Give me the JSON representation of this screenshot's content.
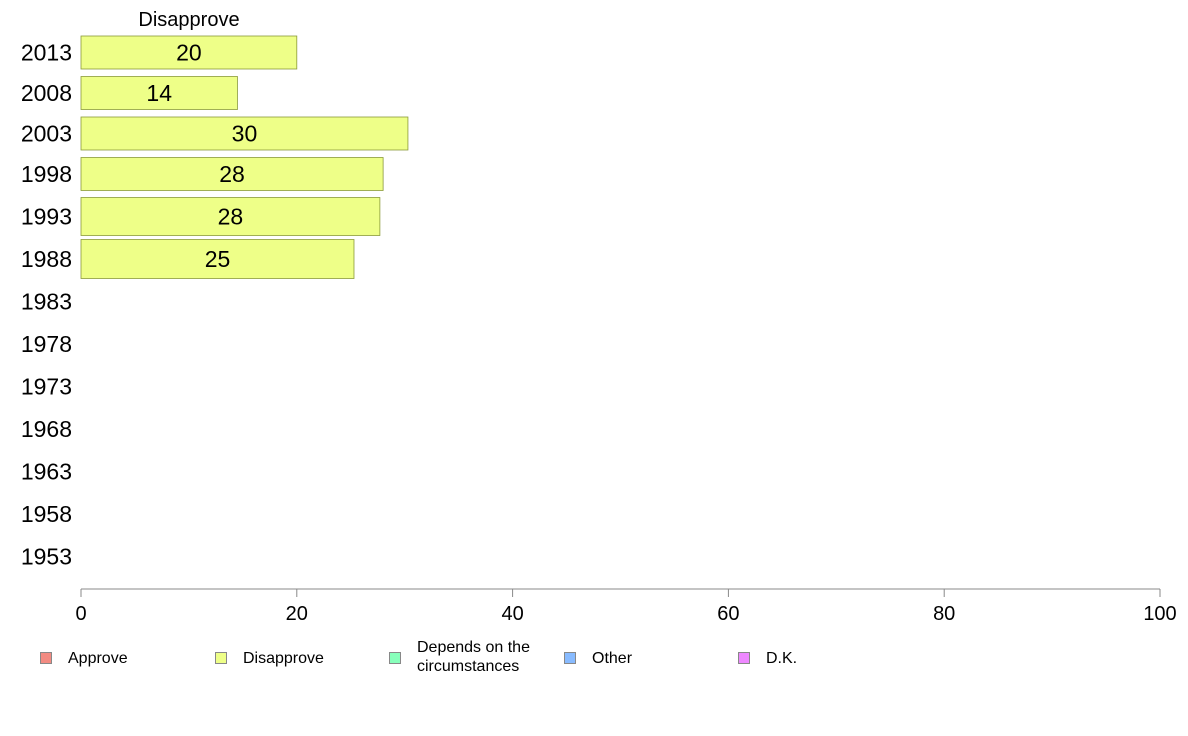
{
  "chart_data": {
    "type": "bar",
    "orientation": "horizontal",
    "series_header": "Disapprove",
    "categories": [
      "2013",
      "2008",
      "2003",
      "1998",
      "1993",
      "1988",
      "1983",
      "1978",
      "1973",
      "1968",
      "1963",
      "1958",
      "1953"
    ],
    "series": [
      {
        "name": "Disapprove",
        "color": "#eeff88",
        "values": [
          20,
          14.5,
          30.3,
          28,
          27.7,
          25.3,
          null,
          null,
          null,
          null,
          null,
          null,
          null
        ],
        "labels": [
          "20",
          "14",
          "30",
          "28",
          "28",
          "25",
          "",
          "",
          "",
          "",
          "",
          "",
          ""
        ]
      }
    ],
    "xlim": [
      0,
      100
    ],
    "xticks": [
      "0",
      "20",
      "40",
      "60",
      "80",
      "100"
    ],
    "grid": false,
    "legend_position": "bottom"
  },
  "legend": [
    {
      "label": "Approve",
      "color": "#f28b82"
    },
    {
      "label": "Disapprove",
      "color": "#eeff88"
    },
    {
      "label": "Depends on the circumstances",
      "color": "#88ffbb"
    },
    {
      "label": "Other",
      "color": "#88bbff"
    },
    {
      "label": "D.K.",
      "color": "#ee88ff"
    }
  ]
}
